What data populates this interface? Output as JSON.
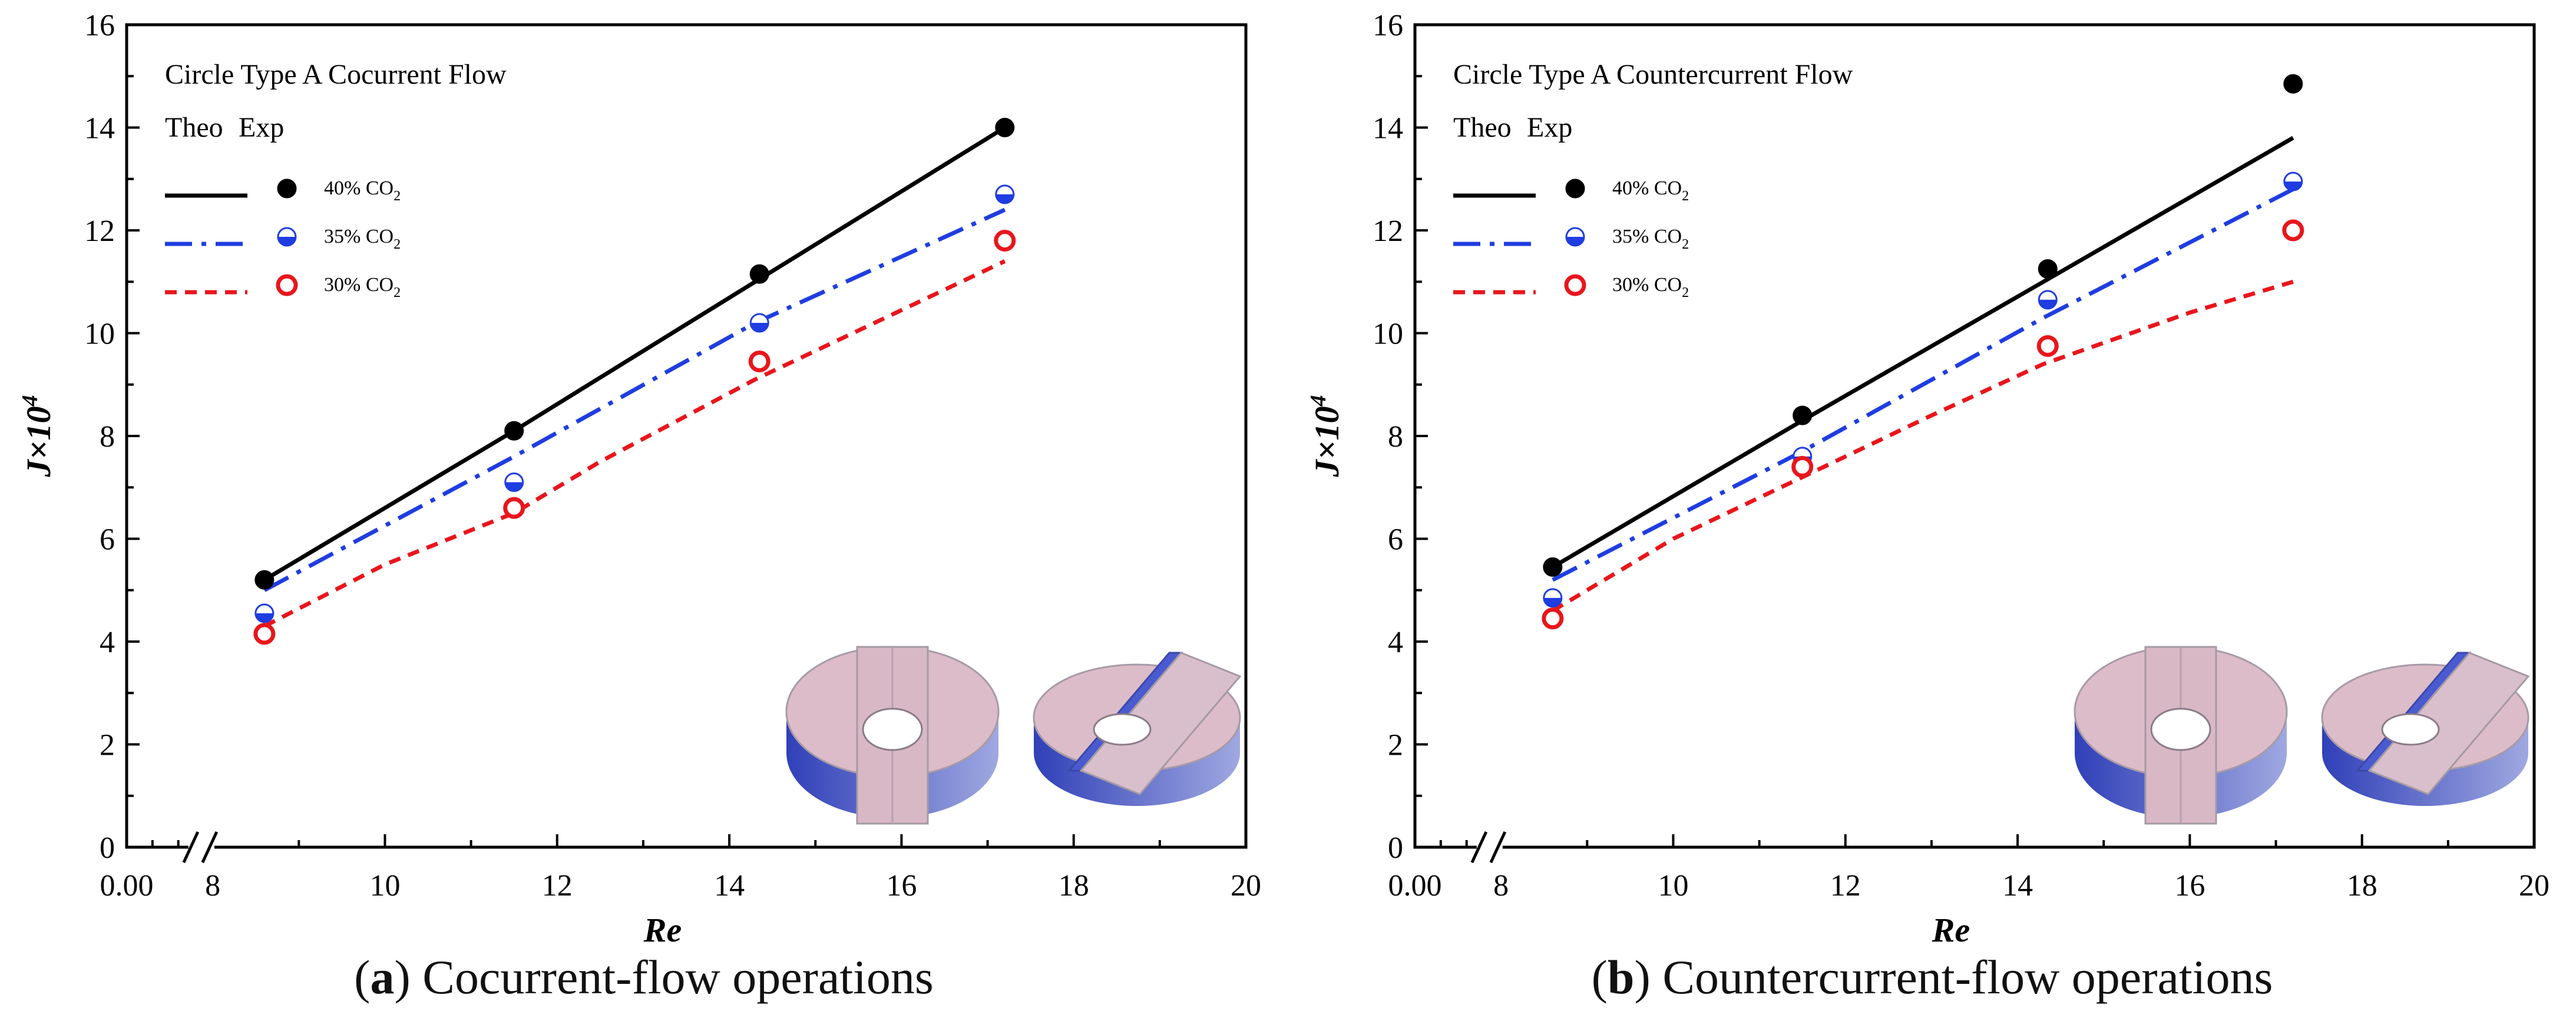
{
  "chart_data": [
    {
      "type": "line",
      "panel_letter": "a",
      "caption": "Cocurrent-flow operations",
      "annotation_line1": "Circle Type A   Cocurrent Flow",
      "legend_header": {
        "theo": "Theo",
        "exp": "Exp"
      },
      "xlabel": "Re",
      "ylabel": "J×10",
      "ylabel_sup": "4",
      "xlim": [
        7.0,
        20
      ],
      "ylim": [
        0,
        16
      ],
      "axis_break": true,
      "x_tick_labels": [
        "0.00",
        "8",
        "10",
        "12",
        "14",
        "16",
        "18",
        "20"
      ],
      "y_tick_labels": [
        "0",
        "2",
        "4",
        "6",
        "8",
        "10",
        "12",
        "14",
        "16"
      ],
      "legend_position": "top-left",
      "series": [
        {
          "name": "40% CO",
          "name_sub": "2",
          "color": "#000000",
          "line_style": "solid",
          "marker": "filled",
          "theo_x": [
            8.6,
            11.5,
            14.3,
            17.2
          ],
          "theo_y": [
            5.2,
            8.1,
            11.0,
            14.0
          ],
          "exp_x": [
            8.6,
            11.5,
            14.35,
            17.2
          ],
          "exp_y": [
            5.2,
            8.1,
            11.15,
            14.0
          ]
        },
        {
          "name": "35% CO",
          "name_sub": "2",
          "color": "#1f3de0",
          "line_style": "dash-dot",
          "marker": "half",
          "theo_x": [
            8.6,
            11.5,
            14.3,
            17.2
          ],
          "theo_y": [
            5.0,
            7.6,
            10.2,
            12.4
          ],
          "exp_x": [
            8.6,
            11.5,
            14.35,
            17.2
          ],
          "exp_y": [
            4.55,
            7.1,
            10.2,
            12.7
          ]
        },
        {
          "name": "30% CO",
          "name_sub": "2",
          "color": "#e8161c",
          "line_style": "dotted",
          "marker": "open",
          "theo_x": [
            8.6,
            10.0,
            11.5,
            12.5,
            14.3,
            17.2
          ],
          "theo_y": [
            4.3,
            5.5,
            6.5,
            7.5,
            9.1,
            11.4
          ],
          "exp_x": [
            8.6,
            11.5,
            14.35,
            17.2
          ],
          "exp_y": [
            4.15,
            6.6,
            9.45,
            11.8
          ]
        }
      ]
    },
    {
      "type": "line",
      "panel_letter": "b",
      "caption": "Countercurrent-flow operations",
      "annotation_line1": "Circle Type A   Countercurrent Flow",
      "legend_header": {
        "theo": "Theo",
        "exp": "Exp"
      },
      "xlabel": "Re",
      "ylabel": "J×10",
      "ylabel_sup": "4",
      "xlim": [
        7.0,
        20
      ],
      "ylim": [
        0,
        16
      ],
      "axis_break": true,
      "x_tick_labels": [
        "0.00",
        "8",
        "10",
        "12",
        "14",
        "16",
        "18",
        "20"
      ],
      "y_tick_labels": [
        "0",
        "2",
        "4",
        "6",
        "8",
        "10",
        "12",
        "14",
        "16"
      ],
      "legend_position": "top-left",
      "series": [
        {
          "name": "40% CO",
          "name_sub": "2",
          "color": "#000000",
          "line_style": "solid",
          "marker": "filled",
          "theo_x": [
            8.6,
            11.5,
            14.3,
            17.2
          ],
          "theo_y": [
            5.45,
            8.3,
            11.0,
            13.8
          ],
          "exp_x": [
            8.6,
            11.5,
            14.35,
            17.2
          ],
          "exp_y": [
            5.45,
            8.4,
            11.25,
            14.85
          ]
        },
        {
          "name": "35% CO",
          "name_sub": "2",
          "color": "#1f3de0",
          "line_style": "dash-dot",
          "marker": "half",
          "theo_x": [
            8.6,
            11.5,
            14.3,
            17.2
          ],
          "theo_y": [
            5.2,
            7.7,
            10.3,
            12.8
          ],
          "exp_x": [
            8.6,
            11.5,
            14.35,
            17.2
          ],
          "exp_y": [
            4.85,
            7.6,
            10.65,
            12.95
          ]
        },
        {
          "name": "30% CO",
          "name_sub": "2",
          "color": "#e8161c",
          "line_style": "dotted",
          "marker": "open",
          "theo_x": [
            8.6,
            10.0,
            11.5,
            13.0,
            14.3,
            16.0,
            17.2
          ],
          "theo_y": [
            4.6,
            6.0,
            7.2,
            8.4,
            9.4,
            10.4,
            11.0
          ],
          "exp_x": [
            8.6,
            11.5,
            14.35,
            17.2
          ],
          "exp_y": [
            4.45,
            7.4,
            9.75,
            12.0
          ]
        }
      ]
    }
  ]
}
